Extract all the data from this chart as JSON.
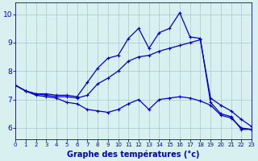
{
  "x": [
    0,
    1,
    2,
    3,
    4,
    5,
    6,
    7,
    8,
    9,
    10,
    11,
    12,
    13,
    14,
    15,
    16,
    17,
    18,
    19,
    20,
    21,
    22,
    23
  ],
  "line_top": [
    7.5,
    7.3,
    7.2,
    7.2,
    7.15,
    7.15,
    7.1,
    7.6,
    8.1,
    8.45,
    8.55,
    9.15,
    9.5,
    8.8,
    9.35,
    9.5,
    10.05,
    9.2,
    9.15,
    6.9,
    6.5,
    6.4,
    5.95,
    5.95
  ],
  "line_mid": [
    7.5,
    7.3,
    7.2,
    7.15,
    7.1,
    7.1,
    7.05,
    7.15,
    7.55,
    7.75,
    8.0,
    8.35,
    8.5,
    8.55,
    8.7,
    8.8,
    8.9,
    9.0,
    9.1,
    7.05,
    6.8,
    6.6,
    6.3,
    6.05
  ],
  "line_bot": [
    7.5,
    7.3,
    7.15,
    7.1,
    7.05,
    6.9,
    6.85,
    6.65,
    6.6,
    6.55,
    6.65,
    6.85,
    7.0,
    6.65,
    7.0,
    7.05,
    7.1,
    7.05,
    6.95,
    6.8,
    6.45,
    6.35,
    6.0,
    5.95
  ],
  "color": "#0000cc",
  "bg_color": "#d8f0f0",
  "grid_color": "#aac8c8",
  "xlabel": "Graphe des températures (°c)",
  "ylim": [
    5.6,
    10.4
  ],
  "xlim": [
    0,
    23
  ],
  "yticks": [
    6,
    7,
    8,
    9,
    10
  ],
  "xticks": [
    0,
    1,
    2,
    3,
    4,
    5,
    6,
    7,
    8,
    9,
    10,
    11,
    12,
    13,
    14,
    15,
    16,
    17,
    18,
    19,
    20,
    21,
    22,
    23
  ],
  "xlabel_fontsize": 7,
  "tick_fontsize_x": 5,
  "tick_fontsize_y": 6.5
}
